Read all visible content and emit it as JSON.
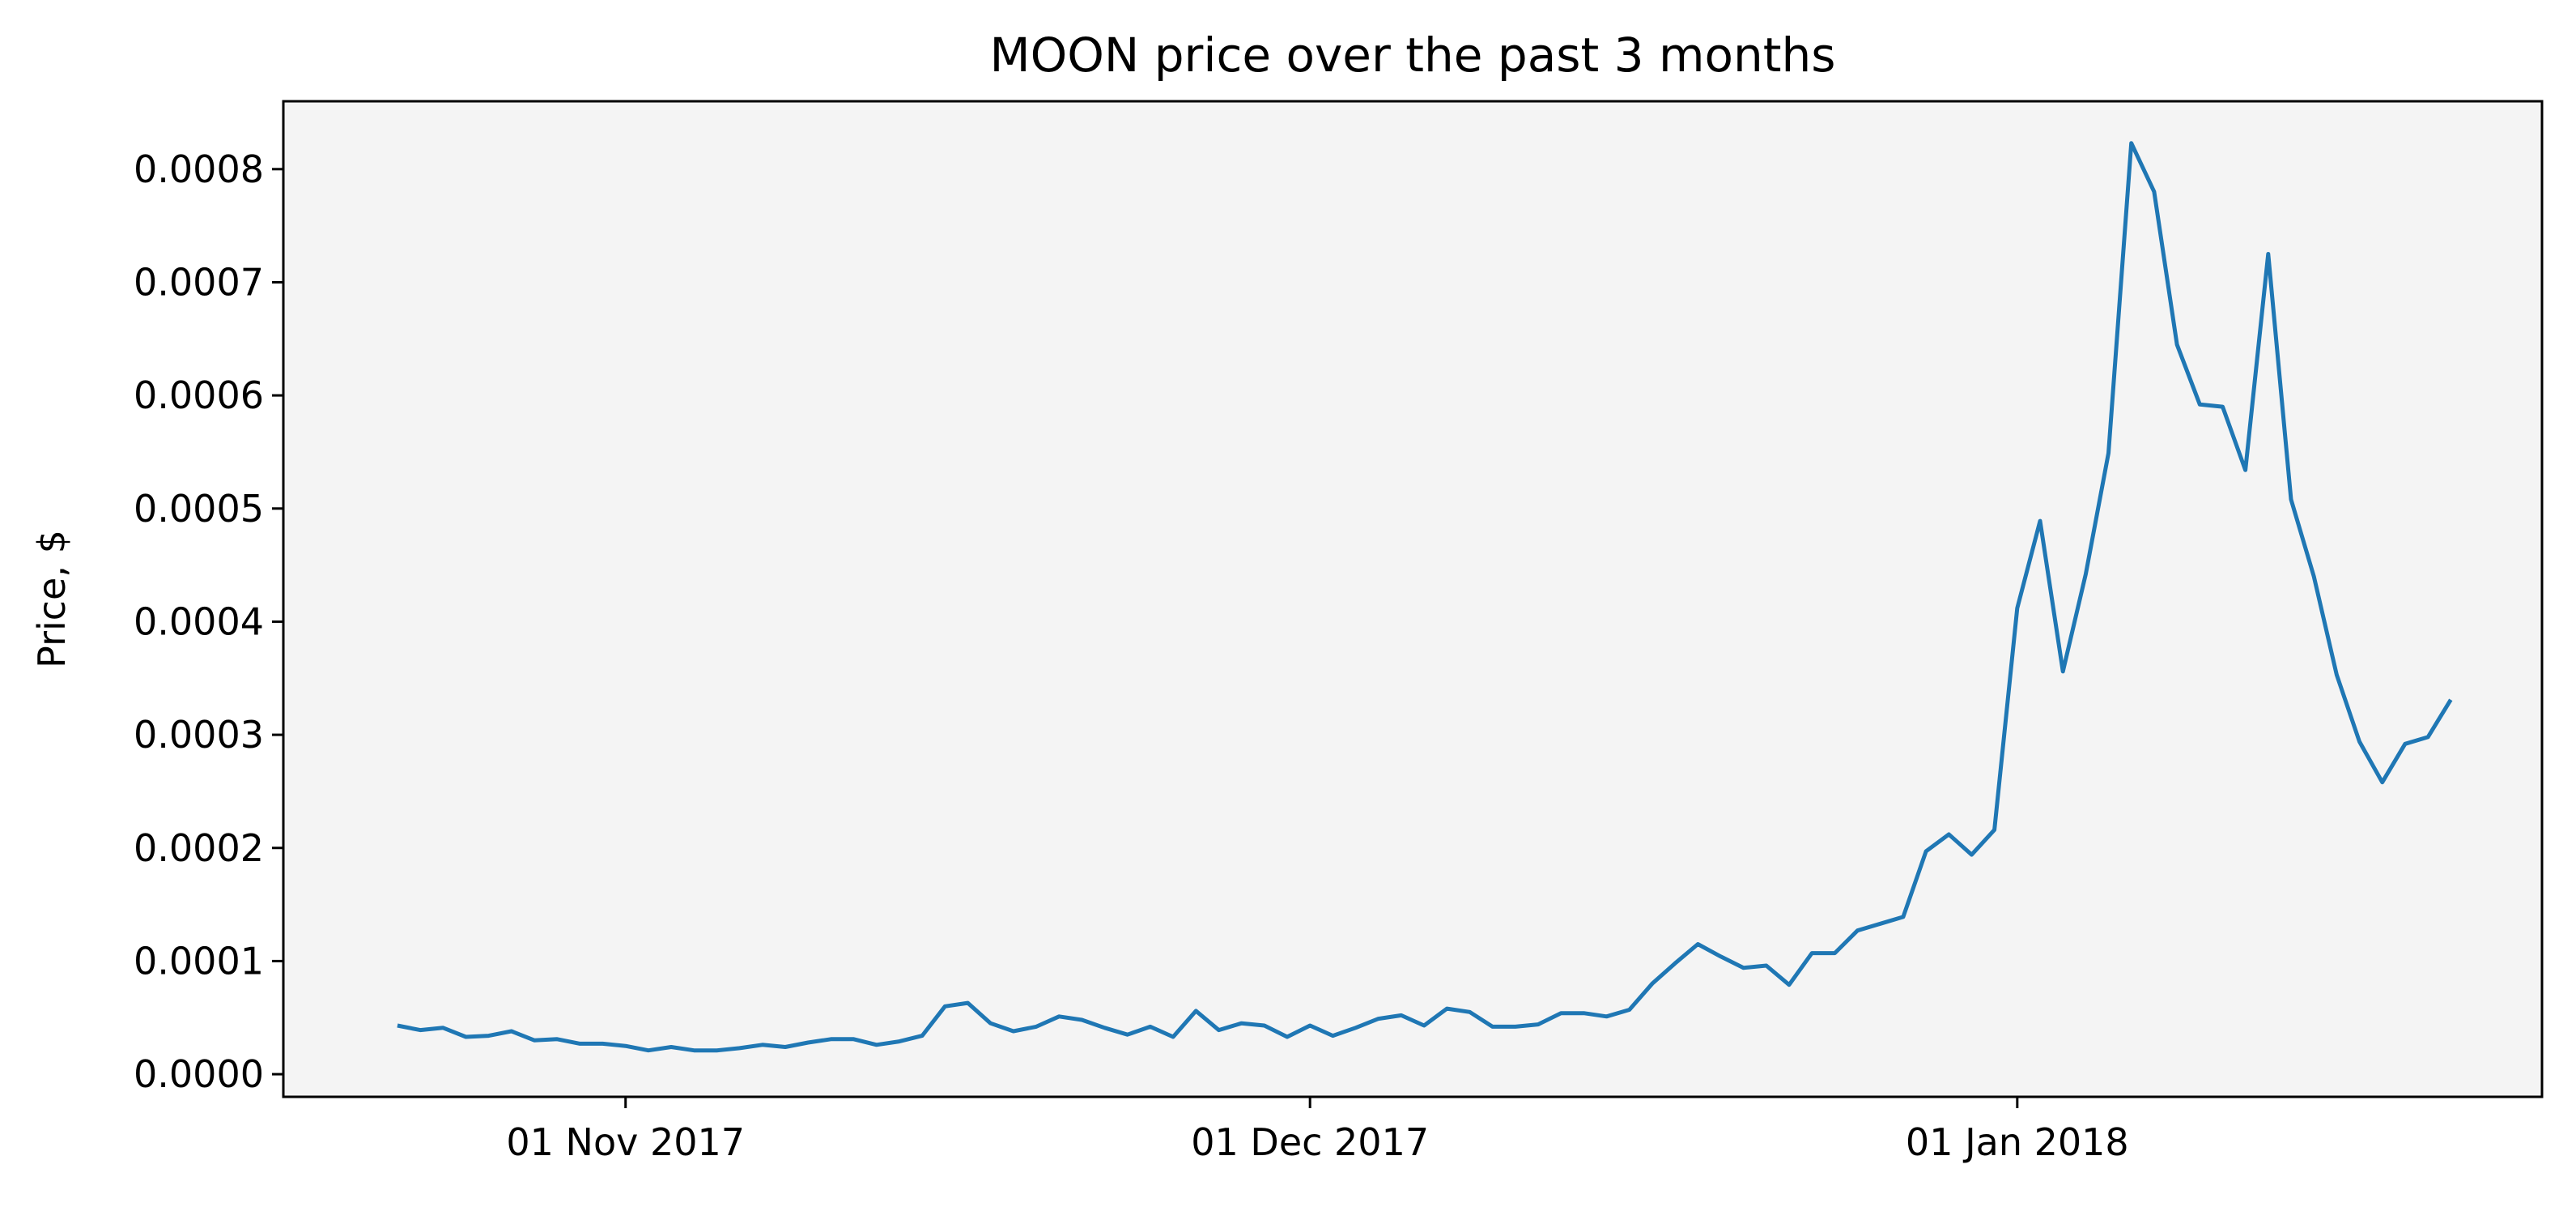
{
  "chart_data": {
    "type": "line",
    "title": "MOON price over the past 3 months",
    "xlabel": "",
    "ylabel": "Price, $",
    "x_axis_type": "date",
    "x_range": [
      "2017-10-17",
      "2018-01-24"
    ],
    "ylim": [
      -2e-05,
      0.00086
    ],
    "x_ticks": [
      {
        "date": "2017-11-01",
        "label": "01 Nov 2017"
      },
      {
        "date": "2017-12-01",
        "label": "01 Dec 2017"
      },
      {
        "date": "2018-01-01",
        "label": "01 Jan 2018"
      }
    ],
    "y_ticks": [
      {
        "value": 0.0,
        "label": "0.0000"
      },
      {
        "value": 0.0001,
        "label": "0.0001"
      },
      {
        "value": 0.0002,
        "label": "0.0002"
      },
      {
        "value": 0.0003,
        "label": "0.0003"
      },
      {
        "value": 0.0004,
        "label": "0.0004"
      },
      {
        "value": 0.0005,
        "label": "0.0005"
      },
      {
        "value": 0.0006,
        "label": "0.0006"
      },
      {
        "value": 0.0007,
        "label": "0.0007"
      },
      {
        "value": 0.0008,
        "label": "0.0008"
      }
    ],
    "grid": false,
    "background_color": "#f4f4f4",
    "series": [
      {
        "color": "#1f77b4",
        "points": [
          [
            "2017-10-22",
            4.3e-05
          ],
          [
            "2017-10-23",
            3.9e-05
          ],
          [
            "2017-10-24",
            4.1e-05
          ],
          [
            "2017-10-25",
            3.3e-05
          ],
          [
            "2017-10-26",
            3.4e-05
          ],
          [
            "2017-10-27",
            3.8e-05
          ],
          [
            "2017-10-28",
            3e-05
          ],
          [
            "2017-10-29",
            3.1e-05
          ],
          [
            "2017-10-30",
            2.7e-05
          ],
          [
            "2017-10-31",
            2.7e-05
          ],
          [
            "2017-11-01",
            2.5e-05
          ],
          [
            "2017-11-02",
            2.1e-05
          ],
          [
            "2017-11-03",
            2.4e-05
          ],
          [
            "2017-11-04",
            2.1e-05
          ],
          [
            "2017-11-05",
            2.1e-05
          ],
          [
            "2017-11-06",
            2.3e-05
          ],
          [
            "2017-11-07",
            2.6e-05
          ],
          [
            "2017-11-08",
            2.4e-05
          ],
          [
            "2017-11-09",
            2.8e-05
          ],
          [
            "2017-11-10",
            3.1e-05
          ],
          [
            "2017-11-11",
            3.1e-05
          ],
          [
            "2017-11-12",
            2.6e-05
          ],
          [
            "2017-11-13",
            2.9e-05
          ],
          [
            "2017-11-14",
            3.4e-05
          ],
          [
            "2017-11-15",
            6e-05
          ],
          [
            "2017-11-16",
            6.3e-05
          ],
          [
            "2017-11-17",
            4.5e-05
          ],
          [
            "2017-11-18",
            3.8e-05
          ],
          [
            "2017-11-19",
            4.2e-05
          ],
          [
            "2017-11-20",
            5.1e-05
          ],
          [
            "2017-11-21",
            4.8e-05
          ],
          [
            "2017-11-22",
            4.1e-05
          ],
          [
            "2017-11-23",
            3.5e-05
          ],
          [
            "2017-11-24",
            4.2e-05
          ],
          [
            "2017-11-25",
            3.3e-05
          ],
          [
            "2017-11-26",
            5.6e-05
          ],
          [
            "2017-11-27",
            3.9e-05
          ],
          [
            "2017-11-28",
            4.5e-05
          ],
          [
            "2017-11-29",
            4.3e-05
          ],
          [
            "2017-11-30",
            3.3e-05
          ],
          [
            "2017-12-01",
            4.3e-05
          ],
          [
            "2017-12-02",
            3.4e-05
          ],
          [
            "2017-12-03",
            4.1e-05
          ],
          [
            "2017-12-04",
            4.9e-05
          ],
          [
            "2017-12-05",
            5.2e-05
          ],
          [
            "2017-12-06",
            4.3e-05
          ],
          [
            "2017-12-07",
            5.8e-05
          ],
          [
            "2017-12-08",
            5.5e-05
          ],
          [
            "2017-12-09",
            4.2e-05
          ],
          [
            "2017-12-10",
            4.2e-05
          ],
          [
            "2017-12-11",
            4.4e-05
          ],
          [
            "2017-12-12",
            5.4e-05
          ],
          [
            "2017-12-13",
            5.4e-05
          ],
          [
            "2017-12-14",
            5.1e-05
          ],
          [
            "2017-12-15",
            5.7e-05
          ],
          [
            "2017-12-16",
            8e-05
          ],
          [
            "2017-12-17",
            9.8e-05
          ],
          [
            "2017-12-18",
            0.000115
          ],
          [
            "2017-12-19",
            0.000104
          ],
          [
            "2017-12-20",
            9.4e-05
          ],
          [
            "2017-12-21",
            9.6e-05
          ],
          [
            "2017-12-22",
            7.9e-05
          ],
          [
            "2017-12-23",
            0.000107
          ],
          [
            "2017-12-24",
            0.000107
          ],
          [
            "2017-12-25",
            0.000127
          ],
          [
            "2017-12-26",
            0.000133
          ],
          [
            "2017-12-27",
            0.000139
          ],
          [
            "2017-12-28",
            0.000197
          ],
          [
            "2017-12-29",
            0.000212
          ],
          [
            "2017-12-30",
            0.000194
          ],
          [
            "2017-12-31",
            0.000216
          ],
          [
            "2018-01-01",
            0.000412
          ],
          [
            "2018-01-02",
            0.000489
          ],
          [
            "2018-01-03",
            0.000356
          ],
          [
            "2018-01-04",
            0.000442
          ],
          [
            "2018-01-05",
            0.000549
          ],
          [
            "2018-01-06",
            0.000823
          ],
          [
            "2018-01-07",
            0.00078
          ],
          [
            "2018-01-08",
            0.000645
          ],
          [
            "2018-01-09",
            0.000592
          ],
          [
            "2018-01-10",
            0.00059
          ],
          [
            "2018-01-11",
            0.000534
          ],
          [
            "2018-01-12",
            0.000725
          ],
          [
            "2018-01-13",
            0.000508
          ],
          [
            "2018-01-14",
            0.00044
          ],
          [
            "2018-01-15",
            0.000353
          ],
          [
            "2018-01-16",
            0.000294
          ],
          [
            "2018-01-17",
            0.000258
          ],
          [
            "2018-01-18",
            0.000292
          ],
          [
            "2018-01-19",
            0.000298
          ],
          [
            "2018-01-20",
            0.000331
          ]
        ]
      }
    ]
  }
}
